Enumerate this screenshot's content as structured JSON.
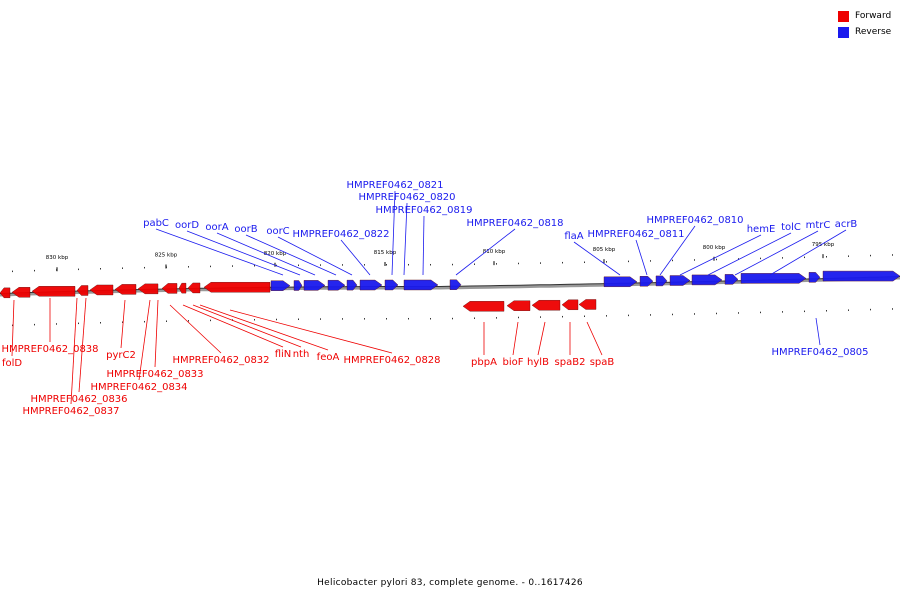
{
  "legend": [
    {
      "label": "Forward",
      "color": "#ee0000"
    },
    {
      "label": "Reverse",
      "color": "#1a1aee"
    }
  ],
  "caption": "Helicobacter pylori 83, complete genome. - 0..1617426",
  "colors": {
    "forward": "#ee0000",
    "reverse": "#1a1aee",
    "backbone": "#999999"
  },
  "ticks": [
    "830 kbp",
    "825 kbp",
    "820 kbp",
    "815 kbp",
    "810 kbp",
    "805 kbp",
    "800 kbp",
    "795 kbp"
  ],
  "forward_labels": [
    "folD",
    "HMPREF0462_0838",
    "HMPREF0462_0837",
    "HMPREF0462_0836",
    "HMPREF0462_0834",
    "HMPREF0462_0833",
    "pyrC2",
    "HMPREF0462_0832",
    "fliN",
    "nth",
    "feoA",
    "HMPREF0462_0828",
    "pbpA",
    "bioF",
    "hylB",
    "spaB2",
    "spaB"
  ],
  "reverse_labels": [
    "pabC",
    "oorD",
    "oorA",
    "oorB",
    "oorC",
    "HMPREF0462_0822",
    "HMPREF0462_0821",
    "HMPREF0462_0820",
    "HMPREF0462_0819",
    "HMPREF0462_0818",
    "flaA",
    "HMPREF0462_0811",
    "HMPREF0462_0810",
    "hemE",
    "tolC",
    "mtrC",
    "acrB",
    "HMPREF0462_0805"
  ]
}
